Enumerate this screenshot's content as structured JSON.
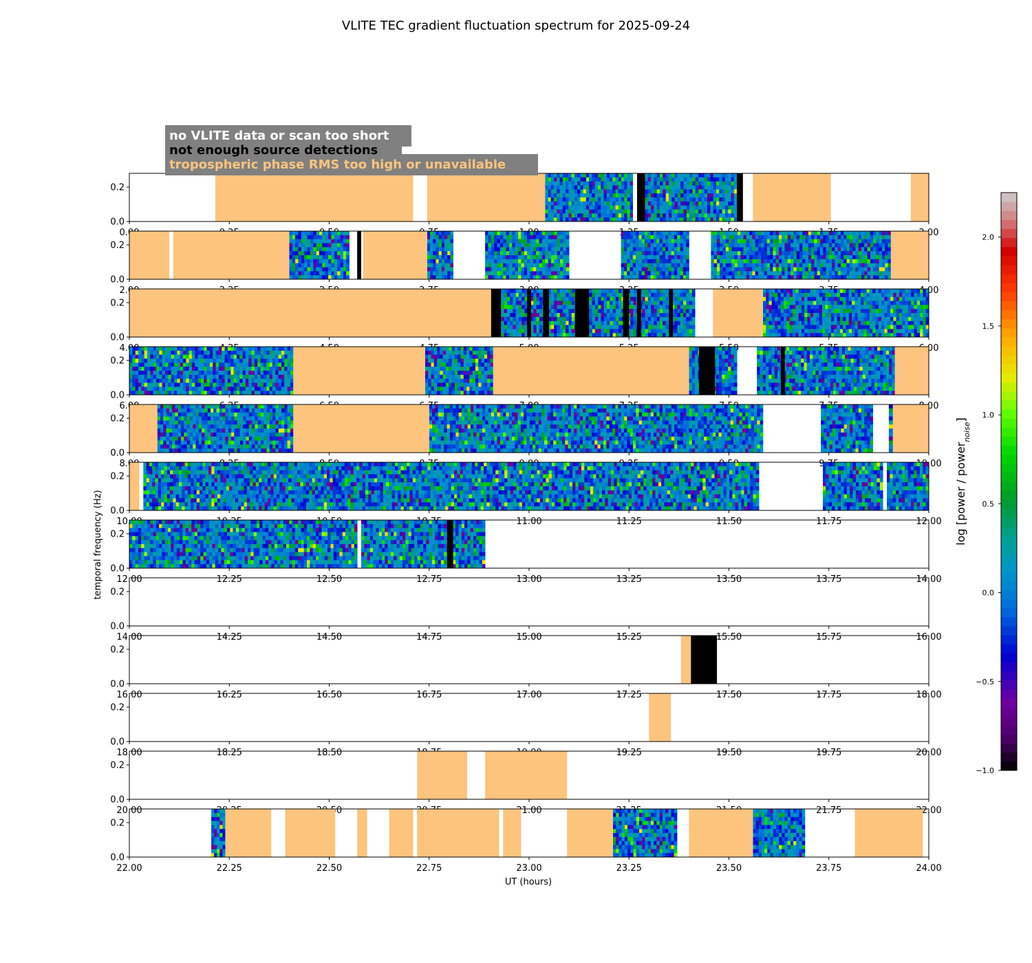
{
  "chart_data": {
    "type": "heatmap",
    "title": "VLITE TEC gradient fluctuation spectrum for 2025-09-24",
    "xlabel": "UT (hours)",
    "ylabel": "temporal frequency (Hz)",
    "colorbar_label_prefix": "log [power / power",
    "colorbar_label_sub": "noise",
    "colorbar_label_suffix": "]",
    "colorbar_range": [
      -1.0,
      2.25
    ],
    "colorbar_ticks": [
      "−1.0",
      "−0.5",
      "0.0",
      "0.5",
      "1.0",
      "1.5",
      "2.0"
    ],
    "colorbar_tick_values": [
      -1.0,
      -0.5,
      0.0,
      0.5,
      1.0,
      1.5,
      2.0
    ],
    "y_range": [
      0.0,
      0.28
    ],
    "y_ticks": [
      "0.0",
      "0.2"
    ],
    "y_tick_values": [
      0.0,
      0.2
    ],
    "legend": [
      {
        "label": "no VLITE data or scan too short",
        "text_color": "#ffffff"
      },
      {
        "label": "not enough source detections",
        "text_color": "#000000"
      },
      {
        "label": "tropospheric phase RMS too high or unavailable",
        "text_color": "#fdc47d"
      }
    ],
    "colors": {
      "tropo": "#fdc47d",
      "no_detections": "#000000",
      "legend_box": "#808080"
    },
    "panels": [
      {
        "x_range": [
          0.0,
          2.0
        ],
        "x_ticks": [
          "0.00",
          "0.25",
          "0.50",
          "0.75",
          "1.00",
          "1.25",
          "1.50",
          "1.75",
          "2.00"
        ],
        "segments": [
          {
            "start": 0.215,
            "end": 0.71,
            "kind": "tropo"
          },
          {
            "start": 0.745,
            "end": 1.04,
            "kind": "tropo"
          },
          {
            "start": 1.04,
            "end": 1.26,
            "kind": "spec"
          },
          {
            "start": 1.26,
            "end": 1.27,
            "kind": "none"
          },
          {
            "start": 1.27,
            "end": 1.29,
            "kind": "nodet"
          },
          {
            "start": 1.29,
            "end": 1.52,
            "kind": "spec"
          },
          {
            "start": 1.52,
            "end": 1.535,
            "kind": "nodet"
          },
          {
            "start": 1.56,
            "end": 1.755,
            "kind": "tropo"
          },
          {
            "start": 1.955,
            "end": 2.0,
            "kind": "tropo"
          }
        ]
      },
      {
        "x_range": [
          2.0,
          4.0
        ],
        "x_ticks": [
          "2.00",
          "2.25",
          "2.50",
          "2.75",
          "3.00",
          "3.25",
          "3.50",
          "3.75",
          "4.00"
        ],
        "segments": [
          {
            "start": 2.0,
            "end": 2.1,
            "kind": "tropo"
          },
          {
            "start": 2.11,
            "end": 2.4,
            "kind": "tropo"
          },
          {
            "start": 2.4,
            "end": 2.55,
            "kind": "spec"
          },
          {
            "start": 2.57,
            "end": 2.58,
            "kind": "nodet"
          },
          {
            "start": 2.585,
            "end": 2.745,
            "kind": "tropo"
          },
          {
            "start": 2.745,
            "end": 2.81,
            "kind": "spec"
          },
          {
            "start": 2.89,
            "end": 3.1,
            "kind": "spec"
          },
          {
            "start": 3.23,
            "end": 3.4,
            "kind": "spec"
          },
          {
            "start": 3.455,
            "end": 3.905,
            "kind": "spec"
          },
          {
            "start": 3.905,
            "end": 4.0,
            "kind": "tropo"
          }
        ]
      },
      {
        "x_range": [
          4.0,
          6.0
        ],
        "x_ticks": [
          "4.00",
          "4.25",
          "4.50",
          "4.75",
          "5.00",
          "5.25",
          "5.50",
          "5.75",
          "6.00"
        ],
        "segments": [
          {
            "start": 4.0,
            "end": 4.905,
            "kind": "tropo"
          },
          {
            "start": 4.905,
            "end": 4.93,
            "kind": "nodet"
          },
          {
            "start": 4.93,
            "end": 5.415,
            "kind": "spec"
          },
          {
            "start": 4.995,
            "end": 5.005,
            "kind": "nodet"
          },
          {
            "start": 5.035,
            "end": 5.05,
            "kind": "nodet"
          },
          {
            "start": 5.115,
            "end": 5.15,
            "kind": "nodet"
          },
          {
            "start": 5.235,
            "end": 5.25,
            "kind": "nodet"
          },
          {
            "start": 5.27,
            "end": 5.28,
            "kind": "nodet"
          },
          {
            "start": 5.35,
            "end": 5.36,
            "kind": "nodet"
          },
          {
            "start": 5.46,
            "end": 5.585,
            "kind": "tropo"
          },
          {
            "start": 5.585,
            "end": 6.0,
            "kind": "spec"
          }
        ]
      },
      {
        "x_range": [
          6.0,
          8.0
        ],
        "x_ticks": [
          "6.00",
          "6.25",
          "6.50",
          "6.75",
          "7.00",
          "7.25",
          "7.50",
          "7.75",
          "8.00"
        ],
        "segments": [
          {
            "start": 6.0,
            "end": 6.41,
            "kind": "spec"
          },
          {
            "start": 6.41,
            "end": 6.74,
            "kind": "tropo"
          },
          {
            "start": 6.74,
            "end": 6.91,
            "kind": "spec"
          },
          {
            "start": 6.91,
            "end": 7.4,
            "kind": "tropo"
          },
          {
            "start": 7.4,
            "end": 7.52,
            "kind": "spec"
          },
          {
            "start": 7.425,
            "end": 7.465,
            "kind": "nodet"
          },
          {
            "start": 7.57,
            "end": 7.915,
            "kind": "spec"
          },
          {
            "start": 7.63,
            "end": 7.64,
            "kind": "nodet"
          },
          {
            "start": 7.915,
            "end": 8.0,
            "kind": "tropo"
          }
        ]
      },
      {
        "x_range": [
          8.0,
          10.0
        ],
        "x_ticks": [
          "8.00",
          "8.25",
          "8.50",
          "8.75",
          "9.00",
          "9.25",
          "9.50",
          "9.75",
          "10.00"
        ],
        "segments": [
          {
            "start": 8.0,
            "end": 8.07,
            "kind": "tropo"
          },
          {
            "start": 8.07,
            "end": 8.41,
            "kind": "spec"
          },
          {
            "start": 8.41,
            "end": 8.75,
            "kind": "tropo"
          },
          {
            "start": 8.75,
            "end": 9.585,
            "kind": "spec"
          },
          {
            "start": 9.73,
            "end": 9.86,
            "kind": "spec"
          },
          {
            "start": 9.9,
            "end": 9.91,
            "kind": "spec"
          },
          {
            "start": 9.91,
            "end": 10.0,
            "kind": "tropo"
          }
        ]
      },
      {
        "x_range": [
          10.0,
          12.0
        ],
        "x_ticks": [
          "10.00",
          "10.25",
          "10.50",
          "10.75",
          "11.00",
          "11.25",
          "11.50",
          "11.75",
          "12.00"
        ],
        "segments": [
          {
            "start": 10.0,
            "end": 10.025,
            "kind": "tropo"
          },
          {
            "start": 10.035,
            "end": 11.575,
            "kind": "spec"
          },
          {
            "start": 11.735,
            "end": 11.885,
            "kind": "spec"
          },
          {
            "start": 11.895,
            "end": 12.0,
            "kind": "spec"
          }
        ]
      },
      {
        "x_range": [
          12.0,
          14.0
        ],
        "x_ticks": [
          "12.00",
          "12.25",
          "12.50",
          "12.75",
          "13.00",
          "13.25",
          "13.50",
          "13.75",
          "14.00"
        ],
        "segments": [
          {
            "start": 12.0,
            "end": 12.57,
            "kind": "spec"
          },
          {
            "start": 12.58,
            "end": 12.89,
            "kind": "spec"
          },
          {
            "start": 12.795,
            "end": 12.81,
            "kind": "nodet"
          }
        ]
      },
      {
        "x_range": [
          14.0,
          16.0
        ],
        "x_ticks": [
          "14.00",
          "14.25",
          "14.50",
          "14.75",
          "15.00",
          "15.25",
          "15.50",
          "15.75",
          "16.00"
        ],
        "segments": []
      },
      {
        "x_range": [
          16.0,
          18.0
        ],
        "x_ticks": [
          "16.00",
          "16.25",
          "16.50",
          "16.75",
          "17.00",
          "17.25",
          "17.50",
          "17.75",
          "18.00"
        ],
        "segments": [
          {
            "start": 17.38,
            "end": 17.405,
            "kind": "tropo"
          },
          {
            "start": 17.405,
            "end": 17.47,
            "kind": "nodet"
          }
        ]
      },
      {
        "x_range": [
          18.0,
          20.0
        ],
        "x_ticks": [
          "18.00",
          "18.25",
          "18.50",
          "18.75",
          "19.00",
          "19.25",
          "19.50",
          "19.75",
          "20.00"
        ],
        "segments": [
          {
            "start": 19.3,
            "end": 19.355,
            "kind": "tropo"
          }
        ]
      },
      {
        "x_range": [
          20.0,
          22.0
        ],
        "x_ticks": [
          "20.00",
          "20.25",
          "20.50",
          "20.75",
          "21.00",
          "21.25",
          "21.50",
          "21.75",
          "22.00"
        ],
        "segments": [
          {
            "start": 20.72,
            "end": 20.845,
            "kind": "tropo"
          },
          {
            "start": 20.89,
            "end": 21.095,
            "kind": "tropo"
          }
        ]
      },
      {
        "x_range": [
          22.0,
          24.0
        ],
        "x_ticks": [
          "22.00",
          "22.25",
          "22.50",
          "22.75",
          "23.00",
          "23.25",
          "23.50",
          "23.75",
          "24.00"
        ],
        "segments": [
          {
            "start": 22.205,
            "end": 22.24,
            "kind": "spec"
          },
          {
            "start": 22.24,
            "end": 22.355,
            "kind": "tropo"
          },
          {
            "start": 22.39,
            "end": 22.515,
            "kind": "tropo"
          },
          {
            "start": 22.57,
            "end": 22.595,
            "kind": "tropo"
          },
          {
            "start": 22.65,
            "end": 22.71,
            "kind": "tropo"
          },
          {
            "start": 22.72,
            "end": 22.925,
            "kind": "tropo"
          },
          {
            "start": 22.935,
            "end": 22.98,
            "kind": "tropo"
          },
          {
            "start": 23.095,
            "end": 23.21,
            "kind": "tropo"
          },
          {
            "start": 23.21,
            "end": 23.37,
            "kind": "spec"
          },
          {
            "start": 23.4,
            "end": 23.56,
            "kind": "tropo"
          },
          {
            "start": 23.56,
            "end": 23.69,
            "kind": "spec"
          },
          {
            "start": 23.815,
            "end": 23.985,
            "kind": "tropo"
          }
        ]
      }
    ]
  }
}
